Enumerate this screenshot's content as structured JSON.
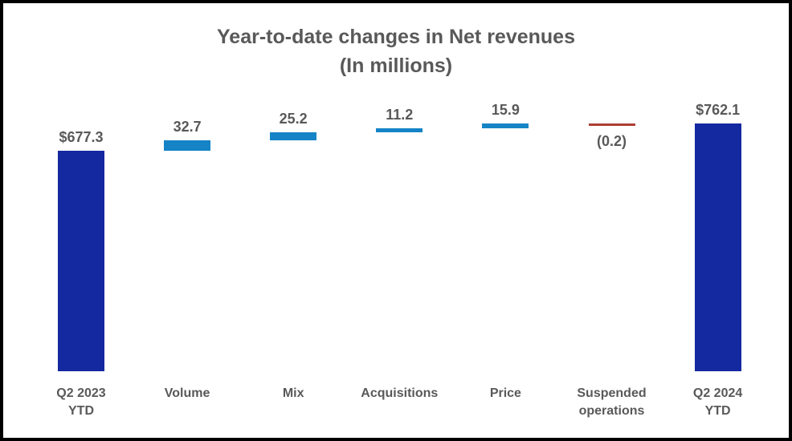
{
  "chart_data": {
    "type": "bar",
    "subtype": "waterfall",
    "title_line1": "Year-to-date changes in Net revenues",
    "title_line2": "(In millions)",
    "legend": "none",
    "grid": false,
    "axes_visible": false,
    "categories": [
      "Q2 2023 YTD",
      "Volume",
      "Mix",
      "Acquisitions",
      "Price",
      "Suspended operations",
      "Q2 2024 YTD"
    ],
    "bars": [
      {
        "category_lines": [
          "Q2 2023",
          "YTD"
        ],
        "label": "$677.3",
        "value": 677.3,
        "kind": "total",
        "label_position": "above"
      },
      {
        "category_lines": [
          "Volume"
        ],
        "label": "32.7",
        "value": 32.7,
        "kind": "delta",
        "label_position": "above"
      },
      {
        "category_lines": [
          "Mix"
        ],
        "label": "25.2",
        "value": 25.2,
        "kind": "delta",
        "label_position": "above"
      },
      {
        "category_lines": [
          "Acquisitions"
        ],
        "label": "11.2",
        "value": 11.2,
        "kind": "delta",
        "label_position": "above"
      },
      {
        "category_lines": [
          "Price"
        ],
        "label": "15.9",
        "value": 15.9,
        "kind": "delta",
        "label_position": "above"
      },
      {
        "category_lines": [
          "Suspended",
          "operations"
        ],
        "label": "(0.2)",
        "value": -0.2,
        "kind": "delta",
        "label_position": "below"
      },
      {
        "category_lines": [
          "Q2 2024",
          "YTD"
        ],
        "label": "$762.1",
        "value": 762.1,
        "kind": "total",
        "label_position": "above"
      }
    ],
    "colors": {
      "total": "#1428A0",
      "positive": "#1484C6",
      "negative": "#AC3E32",
      "text": "#595959"
    }
  }
}
